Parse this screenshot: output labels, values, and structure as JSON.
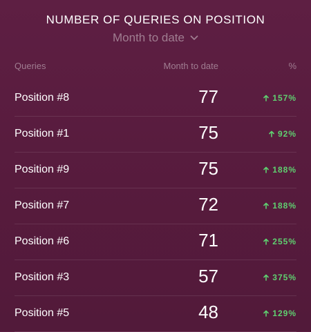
{
  "widget": {
    "title": "NUMBER OF QUERIES ON POSITION",
    "period_selector": {
      "label": "Month to date",
      "icon": "chevron-down-icon"
    },
    "columns": {
      "queries": "Queries",
      "value": "Month to date",
      "change": "%"
    },
    "rows": [
      {
        "label": "Position #8",
        "value": "77",
        "change": "157%",
        "trend": "up"
      },
      {
        "label": "Position #1",
        "value": "75",
        "change": "92%",
        "trend": "up"
      },
      {
        "label": "Position #9",
        "value": "75",
        "change": "188%",
        "trend": "up"
      },
      {
        "label": "Position #7",
        "value": "72",
        "change": "188%",
        "trend": "up"
      },
      {
        "label": "Position #6",
        "value": "71",
        "change": "255%",
        "trend": "up"
      },
      {
        "label": "Position #3",
        "value": "57",
        "change": "375%",
        "trend": "up"
      },
      {
        "label": "Position #5",
        "value": "48",
        "change": "129%",
        "trend": "up"
      }
    ],
    "colors": {
      "background": "#5e1f43",
      "muted_text": "#a07d91",
      "positive": "#5fd070"
    }
  }
}
